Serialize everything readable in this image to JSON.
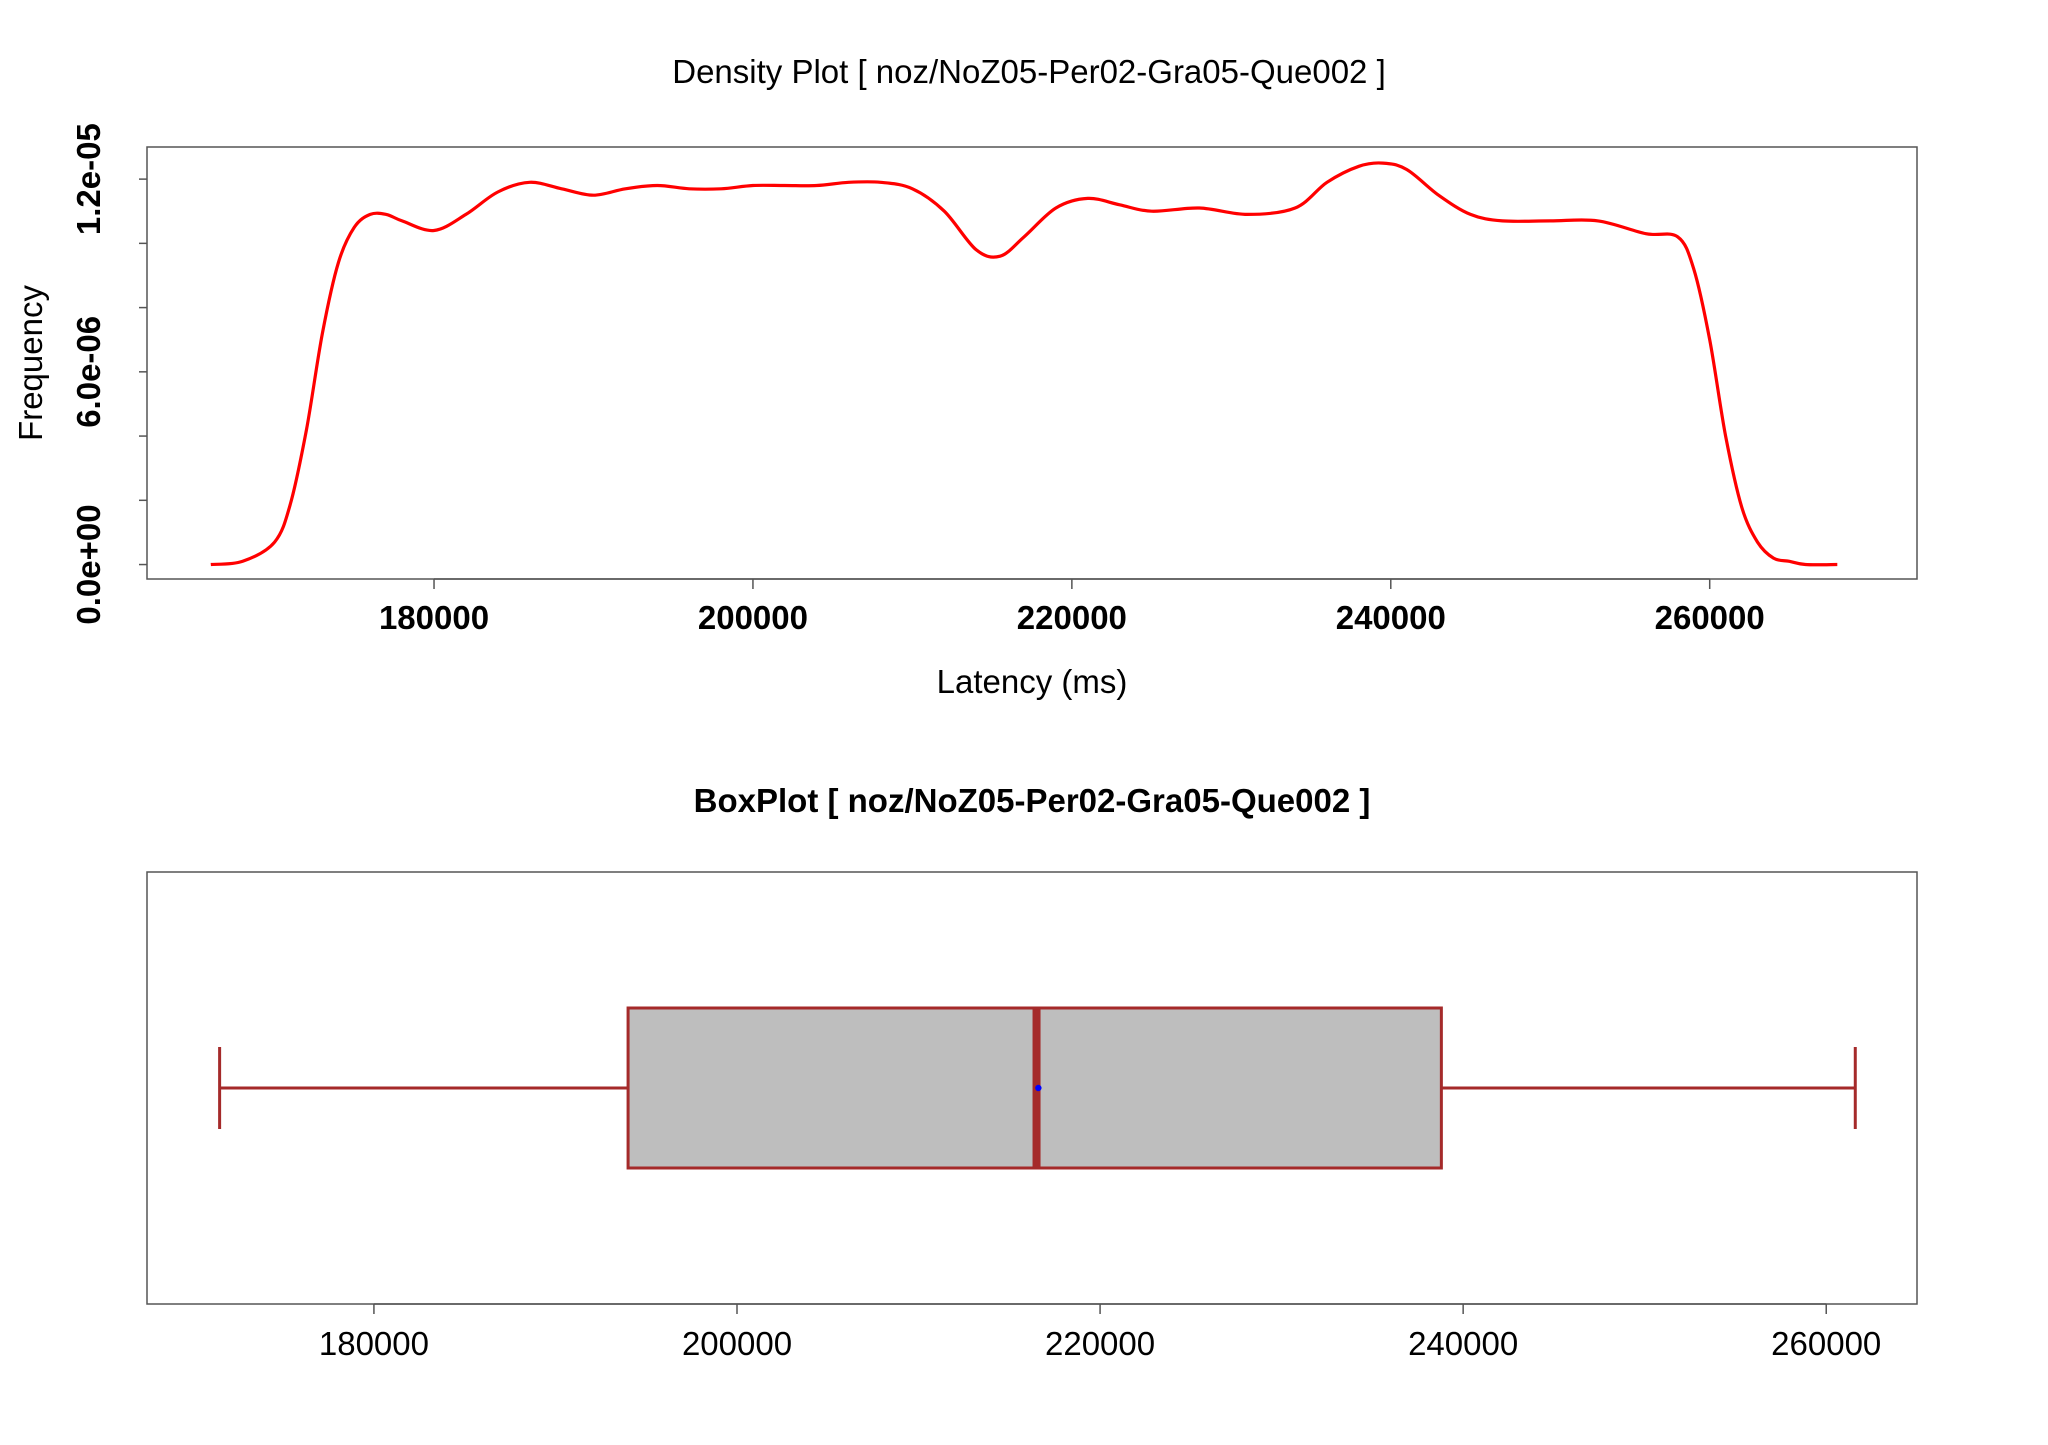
{
  "chart_data": [
    {
      "type": "line",
      "title": "Density Plot [ noz/NoZ05-Per02-Gra05-Que002 ]",
      "xlabel": "Latency (ms)",
      "ylabel": "Frequency",
      "x_ticks": [
        180000,
        200000,
        220000,
        240000,
        260000
      ],
      "x_tick_labels": [
        "180000",
        "200000",
        "220000",
        "240000",
        "260000"
      ],
      "y_ticks": [
        0,
        6e-06,
        1.2e-05
      ],
      "y_tick_labels": [
        "0.0e+00",
        "6.0e-06",
        "1.2e-05"
      ],
      "y_minor_ticks": [
        2e-06,
        4e-06,
        8e-06,
        1e-05
      ],
      "xlim": [
        162000,
        273000
      ],
      "ylim": [
        -4.5e-07,
        1.3e-05
      ],
      "grid": false,
      "line_color": "#ff0000",
      "series": [
        {
          "x": [
            166000,
            168000,
            170000,
            171000,
            172000,
            173000,
            174000,
            175000,
            176000,
            177000,
            178000,
            180000,
            182000,
            184000,
            186000,
            188000,
            190000,
            192000,
            194000,
            196000,
            198000,
            200000,
            202000,
            204000,
            206000,
            208000,
            210000,
            212000,
            214000,
            215500,
            217000,
            219000,
            221000,
            223000,
            225000,
            228000,
            231000,
            234000,
            236000,
            238000,
            239500,
            241000,
            243000,
            245000,
            247000,
            250000,
            253000,
            256000,
            258000,
            259000,
            260000,
            261000,
            262000,
            263000,
            264000,
            265000,
            266000,
            268000
          ],
          "y": [
            0,
            1e-07,
            7e-07,
            1.9e-06,
            4.2e-06,
            7.2e-06,
            9.4e-06,
            1.05e-05,
            1.09e-05,
            1.09e-05,
            1.07e-05,
            1.04e-05,
            1.09e-05,
            1.16e-05,
            1.19e-05,
            1.17e-05,
            1.15e-05,
            1.17e-05,
            1.18e-05,
            1.17e-05,
            1.17e-05,
            1.18e-05,
            1.18e-05,
            1.18e-05,
            1.19e-05,
            1.19e-05,
            1.17e-05,
            1.1e-05,
            9.8e-06,
            9.6e-06,
            1.02e-05,
            1.11e-05,
            1.14e-05,
            1.12e-05,
            1.1e-05,
            1.11e-05,
            1.09e-05,
            1.11e-05,
            1.19e-05,
            1.24e-05,
            1.25e-05,
            1.23e-05,
            1.15e-05,
            1.09e-05,
            1.07e-05,
            1.07e-05,
            1.07e-05,
            1.03e-05,
            1.02e-05,
            9.2e-06,
            7e-06,
            4e-06,
            1.8e-06,
            7e-07,
            2e-07,
            1e-07,
            0,
            0
          ]
        }
      ]
    },
    {
      "type": "box",
      "title": "BoxPlot [ noz/NoZ05-Per02-Gra05-Que002 ]",
      "x_ticks": [
        180000,
        200000,
        220000,
        240000,
        260000
      ],
      "x_tick_labels": [
        "180000",
        "200000",
        "220000",
        "240000",
        "260000"
      ],
      "xlim": [
        167500,
        265000
      ],
      "whisker_low": 171500,
      "q1": 194000,
      "median": 216500,
      "mean": 216600,
      "q3": 238800,
      "whisker_high": 261600,
      "box_fill": "#bebebe",
      "line_color": "#a52a2a",
      "mean_color": "#0000ff"
    }
  ]
}
